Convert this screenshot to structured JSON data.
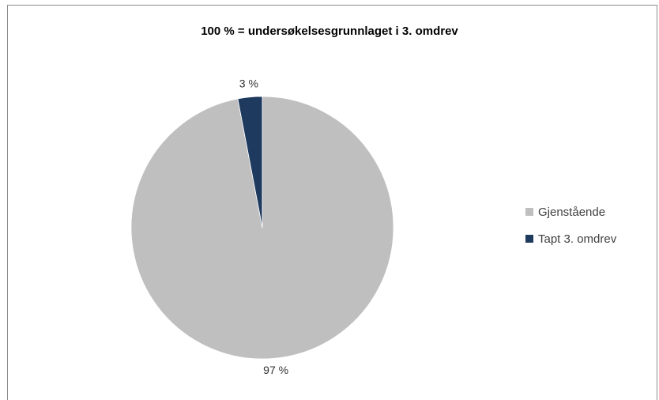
{
  "chart_data": {
    "type": "pie",
    "title": "100 % = undersøkelsesgrunnlaget i 3. omdrev",
    "categories": [
      "Gjenstående",
      "Tapt 3. omdrev"
    ],
    "values": [
      97,
      3
    ],
    "data_labels": [
      "97 %",
      "3 %"
    ],
    "colors": [
      "#bfbfbf",
      "#1f3a5f"
    ],
    "legend_position": "right"
  }
}
